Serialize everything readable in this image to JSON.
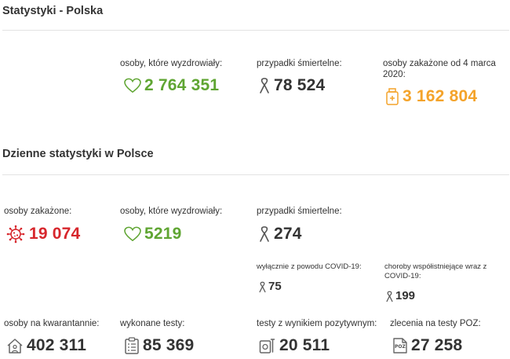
{
  "header": {
    "title": "Statystyki - Polska"
  },
  "summary": {
    "recovered": {
      "label": "osoby, które wyzdrowiały:",
      "value": "2 764 351",
      "icon": "heart-icon"
    },
    "deaths": {
      "label": "przypadki śmiertelne:",
      "value": "78 524",
      "icon": "ribbon-icon"
    },
    "infected": {
      "label": "osoby zakażone od 4 marca 2020:",
      "value": "3 162 804",
      "icon": "medicine-bottle-icon"
    }
  },
  "daily": {
    "title": "Dzienne statystyki w Polsce",
    "infected": {
      "label": "osoby zakażone:",
      "value": "19 074",
      "icon": "virus-icon"
    },
    "recovered": {
      "label": "osoby, które wyzdrowiały:",
      "value": "5219",
      "icon": "heart-icon"
    },
    "deaths": {
      "label": "przypadki śmiertelne:",
      "value": "274",
      "icon": "ribbon-icon",
      "covid_only": {
        "label": "wyłącznie z powodu COVID-19:",
        "value": "75"
      },
      "comorbid": {
        "label": "choroby współistniejące wraz z COVID-19:",
        "value": "199"
      }
    },
    "quarantine": {
      "label": "osoby na kwarantannie:",
      "value": "402 311",
      "icon": "house-icon"
    },
    "tests": {
      "label": "wykonane testy:",
      "value": "85 369",
      "icon": "clipboard-icon"
    },
    "positive_tests": {
      "label": "testy z wynikiem pozytywnym:",
      "value": "20 511",
      "icon": "test-kit-icon"
    },
    "poz_orders": {
      "label": "zlecenia na testy POZ:",
      "value": "27 258",
      "icon": "poz-document-icon",
      "icon_text": "POZ"
    }
  },
  "colors": {
    "green": "#5fa532",
    "red": "#d7262c",
    "orange": "#f4a32a",
    "dark": "#333333",
    "divider": "#e3e3e3"
  }
}
